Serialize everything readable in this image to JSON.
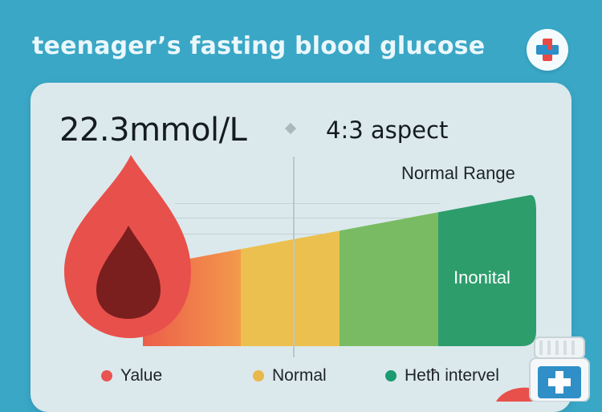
{
  "title": "teenager’s fasting blood glucose",
  "header": {
    "badge_icon": "medical-cross-icon"
  },
  "card": {
    "reading": "22.3mmol/L",
    "aspect": "4:3 aspect",
    "range_label": "Normal Range",
    "zone_label": "Inonital"
  },
  "legend": [
    {
      "label": "Yalue",
      "color": "#e85450"
    },
    {
      "label": "Normal",
      "color": "#e9b84a"
    },
    {
      "label": "Hetħ  intervel",
      "color": "#1c9a72"
    }
  ],
  "colors": {
    "background": "#3aa7c6",
    "card": "#dbe9ec",
    "drop": "#e8504b",
    "drop_inner": "#7a1e1e",
    "zone_orange": "#f08a4a",
    "zone_yellow": "#ecc04e",
    "zone_light_green": "#79bb62",
    "zone_green": "#2d9d6c"
  }
}
